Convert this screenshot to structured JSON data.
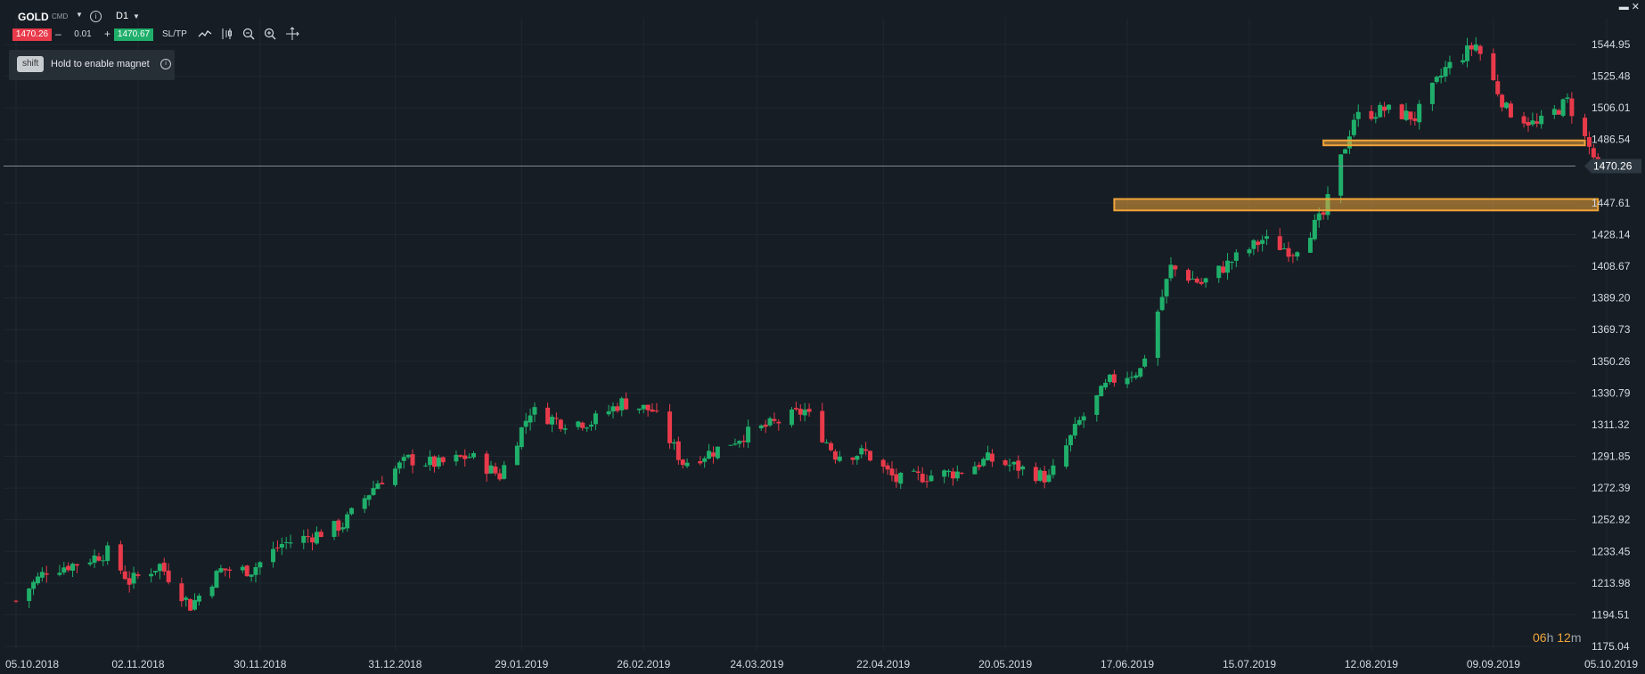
{
  "toolbar": {
    "symbol": "GOLD",
    "asset_class": "CMD",
    "timeframe": "D1",
    "bid_price": "1470.26",
    "ask_price": "1470.67",
    "quantity": "0.01",
    "minus_label": "–",
    "plus_label": "+",
    "sltp_label": "SL/TP",
    "tools": [
      "line-chart-icon",
      "indicators-icon",
      "zoom-out-icon",
      "zoom-in-icon",
      "crosshair-icon"
    ]
  },
  "magnet_tip": {
    "key": "shift",
    "text": "Hold to enable magnet"
  },
  "countdown": {
    "hours": "06",
    "hours_unit": "h",
    "minutes": "12",
    "minutes_unit": "m"
  },
  "colors": {
    "background": "#161d24",
    "up": "#1faf6b",
    "down": "#e83a4a",
    "zone": "#f0a43a",
    "grid": "#1f2831",
    "axis_text": "#d6dbe0"
  },
  "chart_data": {
    "type": "candlestick",
    "symbol": "GOLD",
    "timeframe": "D1",
    "x_ticks": [
      "05.10.2018",
      "02.11.2018",
      "30.11.2018",
      "31.12.2018",
      "29.01.2019",
      "26.02.2019",
      "24.03.2019",
      "22.04.2019",
      "20.05.2019",
      "17.06.2019",
      "15.07.2019",
      "12.08.2019",
      "09.09.2019",
      "05.10.2019"
    ],
    "y_ticks": [
      1544.95,
      1525.48,
      1506.01,
      1486.54,
      1447.61,
      1428.14,
      1408.67,
      1389.2,
      1369.73,
      1350.26,
      1330.79,
      1311.32,
      1291.85,
      1272.39,
      1252.92,
      1233.45,
      1213.98,
      1194.51,
      1175.04
    ],
    "ylim": [
      1175.04,
      1556.0
    ],
    "current_price": 1470.26,
    "current_price_label": "1470.26",
    "zones": [
      {
        "name": "support-zone-upper",
        "from_date": "01.08.2019",
        "to_date": "30.09.2019",
        "low": 1483.0,
        "high": 1486.0
      },
      {
        "name": "support-zone-lower",
        "from_date": "14.06.2019",
        "to_date": "03.10.2019",
        "low": 1443.0,
        "high": 1450.0
      }
    ],
    "closes": [
      [
        "05.10.2018",
        1203
      ],
      [
        "12.10.2018",
        1222
      ],
      [
        "19.10.2018",
        1226
      ],
      [
        "26.10.2018",
        1233
      ],
      [
        "31.10.2018",
        1215
      ],
      [
        "07.11.2018",
        1225
      ],
      [
        "14.11.2018",
        1200
      ],
      [
        "21.11.2018",
        1222
      ],
      [
        "28.11.2018",
        1222
      ],
      [
        "05.12.2018",
        1238
      ],
      [
        "12.12.2018",
        1243
      ],
      [
        "19.12.2018",
        1250
      ],
      [
        "27.12.2018",
        1276
      ],
      [
        "03.01.2019",
        1290
      ],
      [
        "10.01.2019",
        1287
      ],
      [
        "17.01.2019",
        1292
      ],
      [
        "24.01.2019",
        1280
      ],
      [
        "31.01.2019",
        1320
      ],
      [
        "07.02.2019",
        1313
      ],
      [
        "14.02.2019",
        1313
      ],
      [
        "21.02.2019",
        1325
      ],
      [
        "28.02.2019",
        1320
      ],
      [
        "07.03.2019",
        1288
      ],
      [
        "14.03.2019",
        1295
      ],
      [
        "21.03.2019",
        1305
      ],
      [
        "28.03.2019",
        1312
      ],
      [
        "04.04.2019",
        1320
      ],
      [
        "11.04.2019",
        1293
      ],
      [
        "18.04.2019",
        1294
      ],
      [
        "25.04.2019",
        1277
      ],
      [
        "02.05.2019",
        1280
      ],
      [
        "09.05.2019",
        1282
      ],
      [
        "16.05.2019",
        1290
      ],
      [
        "23.05.2019",
        1285
      ],
      [
        "30.05.2019",
        1278
      ],
      [
        "06.06.2019",
        1313
      ],
      [
        "13.06.2019",
        1338
      ],
      [
        "20.06.2019",
        1345
      ],
      [
        "27.06.2019",
        1408
      ],
      [
        "04.07.2019",
        1398
      ],
      [
        "11.07.2019",
        1412
      ],
      [
        "18.07.2019",
        1425
      ],
      [
        "25.07.2019",
        1418
      ],
      [
        "01.08.2019",
        1440
      ],
      [
        "08.08.2019",
        1500
      ],
      [
        "15.08.2019",
        1505
      ],
      [
        "22.08.2019",
        1500
      ],
      [
        "29.08.2019",
        1530
      ],
      [
        "05.09.2019",
        1545
      ],
      [
        "12.09.2019",
        1505
      ],
      [
        "19.09.2019",
        1495
      ],
      [
        "26.09.2019",
        1510
      ],
      [
        "03.10.2019",
        1470
      ]
    ]
  }
}
